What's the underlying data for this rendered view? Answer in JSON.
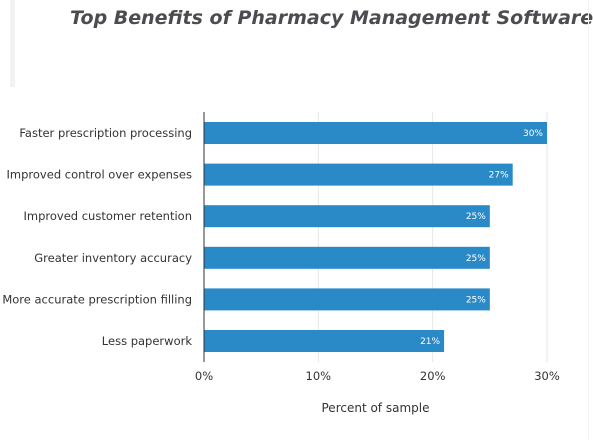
{
  "chart_data": {
    "type": "bar",
    "orientation": "horizontal",
    "title": "Top Benefits of Pharmacy Management Software",
    "categories": [
      "Faster prescription processing",
      "Improved control over expenses",
      "Improved customer retention",
      "Greater inventory accuracy",
      "More accurate prescription filling",
      "Less paperwork"
    ],
    "values": [
      30,
      27,
      25,
      25,
      25,
      21
    ],
    "value_labels": [
      "30%",
      "27%",
      "25%",
      "25%",
      "25%",
      "21%"
    ],
    "xlabel": "Percent of sample",
    "ylabel": "",
    "xlim": [
      0,
      30
    ],
    "xticks": [
      0,
      10,
      20,
      30
    ],
    "xtick_labels": [
      "0%",
      "10%",
      "20%",
      "30%"
    ],
    "grid": true,
    "bar_color": "#2a8ac8"
  }
}
